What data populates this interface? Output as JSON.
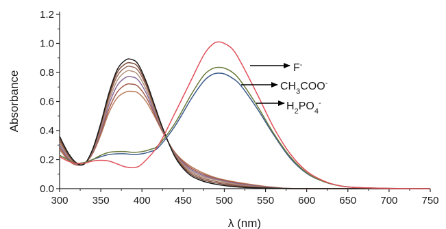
{
  "chart_data": {
    "type": "line",
    "xlabel": "λ (nm)",
    "ylabel": "Absorbance",
    "xlim": [
      300,
      750
    ],
    "ylim": [
      0.0,
      1.2
    ],
    "x_ticks": [
      300,
      350,
      400,
      450,
      500,
      550,
      600,
      650,
      700,
      750
    ],
    "y_ticks": [
      "0.0",
      "0.2",
      "0.4",
      "0.6",
      "0.8",
      "1.0",
      "1.2"
    ],
    "grid": false,
    "legend": "none",
    "annotations": [
      {
        "anion_text": "F",
        "sup": "-",
        "series_ref": 0
      },
      {
        "text_html": "CH<tspan baseline-shift='sub' font-size='11'>3</tspan>COO<tspan baseline-shift='super' font-size='11'>-</tspan>",
        "series_ref": 1
      },
      {
        "text_html": "H<tspan baseline-shift='sub' font-size='11'>2</tspan>PO<tspan baseline-shift='sub' font-size='11'>4</tspan><tspan baseline-shift='super' font-size='11'>-</tspan>",
        "series_ref": 2
      }
    ],
    "series": [
      {
        "color": "#e0505a",
        "points": [
          [
            300,
            0.22
          ],
          [
            310,
            0.19
          ],
          [
            320,
            0.175
          ],
          [
            330,
            0.175
          ],
          [
            340,
            0.19
          ],
          [
            350,
            0.195
          ],
          [
            360,
            0.19
          ],
          [
            370,
            0.17
          ],
          [
            380,
            0.15
          ],
          [
            390,
            0.145
          ],
          [
            400,
            0.17
          ],
          [
            420,
            0.3
          ],
          [
            440,
            0.52
          ],
          [
            460,
            0.75
          ],
          [
            475,
            0.92
          ],
          [
            485,
            0.99
          ],
          [
            492,
            1.01
          ],
          [
            500,
            1.0
          ],
          [
            510,
            0.96
          ],
          [
            520,
            0.87
          ],
          [
            540,
            0.65
          ],
          [
            560,
            0.42
          ],
          [
            580,
            0.24
          ],
          [
            600,
            0.12
          ],
          [
            620,
            0.055
          ],
          [
            640,
            0.02
          ],
          [
            660,
            0.008
          ],
          [
            700,
            0.002
          ],
          [
            750,
            0.0
          ]
        ]
      },
      {
        "color": "#6a7a3a",
        "points": [
          [
            300,
            0.23
          ],
          [
            310,
            0.2
          ],
          [
            320,
            0.175
          ],
          [
            330,
            0.18
          ],
          [
            340,
            0.2
          ],
          [
            350,
            0.23
          ],
          [
            360,
            0.25
          ],
          [
            370,
            0.255
          ],
          [
            380,
            0.255
          ],
          [
            390,
            0.25
          ],
          [
            400,
            0.255
          ],
          [
            410,
            0.27
          ],
          [
            420,
            0.3
          ],
          [
            440,
            0.45
          ],
          [
            460,
            0.65
          ],
          [
            475,
            0.78
          ],
          [
            485,
            0.825
          ],
          [
            492,
            0.835
          ],
          [
            500,
            0.83
          ],
          [
            510,
            0.8
          ],
          [
            520,
            0.74
          ],
          [
            540,
            0.57
          ],
          [
            560,
            0.38
          ],
          [
            580,
            0.22
          ],
          [
            600,
            0.11
          ],
          [
            620,
            0.05
          ],
          [
            640,
            0.02
          ],
          [
            660,
            0.008
          ],
          [
            700,
            0.002
          ],
          [
            750,
            0.0
          ]
        ]
      },
      {
        "color": "#3a5a8a",
        "points": [
          [
            300,
            0.23
          ],
          [
            310,
            0.2
          ],
          [
            320,
            0.175
          ],
          [
            330,
            0.18
          ],
          [
            340,
            0.2
          ],
          [
            350,
            0.22
          ],
          [
            360,
            0.235
          ],
          [
            370,
            0.24
          ],
          [
            380,
            0.24
          ],
          [
            390,
            0.235
          ],
          [
            400,
            0.24
          ],
          [
            410,
            0.255
          ],
          [
            420,
            0.285
          ],
          [
            440,
            0.43
          ],
          [
            460,
            0.62
          ],
          [
            475,
            0.74
          ],
          [
            485,
            0.785
          ],
          [
            492,
            0.795
          ],
          [
            500,
            0.79
          ],
          [
            510,
            0.76
          ],
          [
            520,
            0.71
          ],
          [
            540,
            0.55
          ],
          [
            560,
            0.37
          ],
          [
            580,
            0.21
          ],
          [
            600,
            0.105
          ],
          [
            620,
            0.05
          ],
          [
            640,
            0.02
          ],
          [
            660,
            0.008
          ],
          [
            700,
            0.002
          ],
          [
            750,
            0.0
          ]
        ]
      },
      {
        "color": "#1a1a1a",
        "points": [
          [
            300,
            0.36
          ],
          [
            310,
            0.25
          ],
          [
            320,
            0.18
          ],
          [
            330,
            0.17
          ],
          [
            340,
            0.27
          ],
          [
            350,
            0.45
          ],
          [
            360,
            0.66
          ],
          [
            370,
            0.82
          ],
          [
            380,
            0.885
          ],
          [
            387,
            0.89
          ],
          [
            395,
            0.86
          ],
          [
            405,
            0.74
          ],
          [
            415,
            0.58
          ],
          [
            425,
            0.42
          ],
          [
            440,
            0.22
          ],
          [
            455,
            0.11
          ],
          [
            470,
            0.06
          ],
          [
            490,
            0.03
          ],
          [
            520,
            0.01
          ],
          [
            560,
            0.003
          ],
          [
            600,
            0.0
          ],
          [
            750,
            0.0
          ]
        ]
      },
      {
        "color": "#7a4a3a",
        "points": [
          [
            300,
            0.345
          ],
          [
            310,
            0.24
          ],
          [
            320,
            0.175
          ],
          [
            330,
            0.17
          ],
          [
            340,
            0.265
          ],
          [
            350,
            0.44
          ],
          [
            360,
            0.645
          ],
          [
            370,
            0.8
          ],
          [
            380,
            0.86
          ],
          [
            387,
            0.865
          ],
          [
            395,
            0.84
          ],
          [
            405,
            0.725
          ],
          [
            415,
            0.57
          ],
          [
            425,
            0.415
          ],
          [
            440,
            0.225
          ],
          [
            455,
            0.12
          ],
          [
            470,
            0.07
          ],
          [
            490,
            0.04
          ],
          [
            520,
            0.015
          ],
          [
            560,
            0.004
          ],
          [
            600,
            0.0
          ],
          [
            750,
            0.0
          ]
        ]
      },
      {
        "color": "#9a6a5a",
        "points": [
          [
            300,
            0.33
          ],
          [
            310,
            0.235
          ],
          [
            320,
            0.175
          ],
          [
            330,
            0.172
          ],
          [
            340,
            0.26
          ],
          [
            350,
            0.43
          ],
          [
            360,
            0.63
          ],
          [
            370,
            0.775
          ],
          [
            380,
            0.835
          ],
          [
            387,
            0.84
          ],
          [
            395,
            0.815
          ],
          [
            405,
            0.71
          ],
          [
            415,
            0.56
          ],
          [
            425,
            0.41
          ],
          [
            440,
            0.23
          ],
          [
            455,
            0.13
          ],
          [
            470,
            0.08
          ],
          [
            490,
            0.05
          ],
          [
            520,
            0.02
          ],
          [
            560,
            0.005
          ],
          [
            600,
            0.0
          ],
          [
            750,
            0.0
          ]
        ]
      },
      {
        "color": "#b0907a",
        "points": [
          [
            300,
            0.315
          ],
          [
            310,
            0.225
          ],
          [
            320,
            0.17
          ],
          [
            330,
            0.172
          ],
          [
            340,
            0.255
          ],
          [
            350,
            0.415
          ],
          [
            360,
            0.605
          ],
          [
            370,
            0.745
          ],
          [
            380,
            0.805
          ],
          [
            387,
            0.81
          ],
          [
            395,
            0.785
          ],
          [
            405,
            0.685
          ],
          [
            415,
            0.545
          ],
          [
            425,
            0.405
          ],
          [
            440,
            0.235
          ],
          [
            455,
            0.14
          ],
          [
            470,
            0.09
          ],
          [
            490,
            0.06
          ],
          [
            520,
            0.025
          ],
          [
            560,
            0.006
          ],
          [
            600,
            0.0
          ],
          [
            750,
            0.0
          ]
        ]
      },
      {
        "color": "#8a6a9a",
        "points": [
          [
            300,
            0.3
          ],
          [
            310,
            0.215
          ],
          [
            320,
            0.168
          ],
          [
            330,
            0.172
          ],
          [
            340,
            0.25
          ],
          [
            350,
            0.4
          ],
          [
            360,
            0.58
          ],
          [
            370,
            0.71
          ],
          [
            380,
            0.765
          ],
          [
            387,
            0.77
          ],
          [
            395,
            0.75
          ],
          [
            405,
            0.66
          ],
          [
            415,
            0.53
          ],
          [
            425,
            0.4
          ],
          [
            440,
            0.24
          ],
          [
            455,
            0.15
          ],
          [
            470,
            0.1
          ],
          [
            490,
            0.065
          ],
          [
            520,
            0.03
          ],
          [
            560,
            0.007
          ],
          [
            600,
            0.0
          ],
          [
            750,
            0.0
          ]
        ]
      },
      {
        "color": "#a05a4a",
        "points": [
          [
            300,
            0.285
          ],
          [
            310,
            0.205
          ],
          [
            320,
            0.165
          ],
          [
            330,
            0.172
          ],
          [
            340,
            0.245
          ],
          [
            350,
            0.385
          ],
          [
            360,
            0.55
          ],
          [
            370,
            0.665
          ],
          [
            380,
            0.715
          ],
          [
            387,
            0.72
          ],
          [
            395,
            0.705
          ],
          [
            405,
            0.63
          ],
          [
            415,
            0.515
          ],
          [
            425,
            0.395
          ],
          [
            440,
            0.245
          ],
          [
            455,
            0.16
          ],
          [
            470,
            0.11
          ],
          [
            490,
            0.07
          ],
          [
            520,
            0.035
          ],
          [
            560,
            0.008
          ],
          [
            600,
            0.0
          ],
          [
            750,
            0.0
          ]
        ]
      },
      {
        "color": "#b87a5a",
        "points": [
          [
            300,
            0.27
          ],
          [
            310,
            0.198
          ],
          [
            320,
            0.163
          ],
          [
            330,
            0.172
          ],
          [
            340,
            0.24
          ],
          [
            350,
            0.37
          ],
          [
            360,
            0.525
          ],
          [
            370,
            0.625
          ],
          [
            380,
            0.665
          ],
          [
            387,
            0.67
          ],
          [
            395,
            0.66
          ],
          [
            405,
            0.6
          ],
          [
            415,
            0.5
          ],
          [
            425,
            0.39
          ],
          [
            440,
            0.25
          ],
          [
            455,
            0.17
          ],
          [
            470,
            0.12
          ],
          [
            490,
            0.075
          ],
          [
            520,
            0.04
          ],
          [
            560,
            0.01
          ],
          [
            600,
            0.0
          ],
          [
            750,
            0.0
          ]
        ]
      }
    ]
  }
}
